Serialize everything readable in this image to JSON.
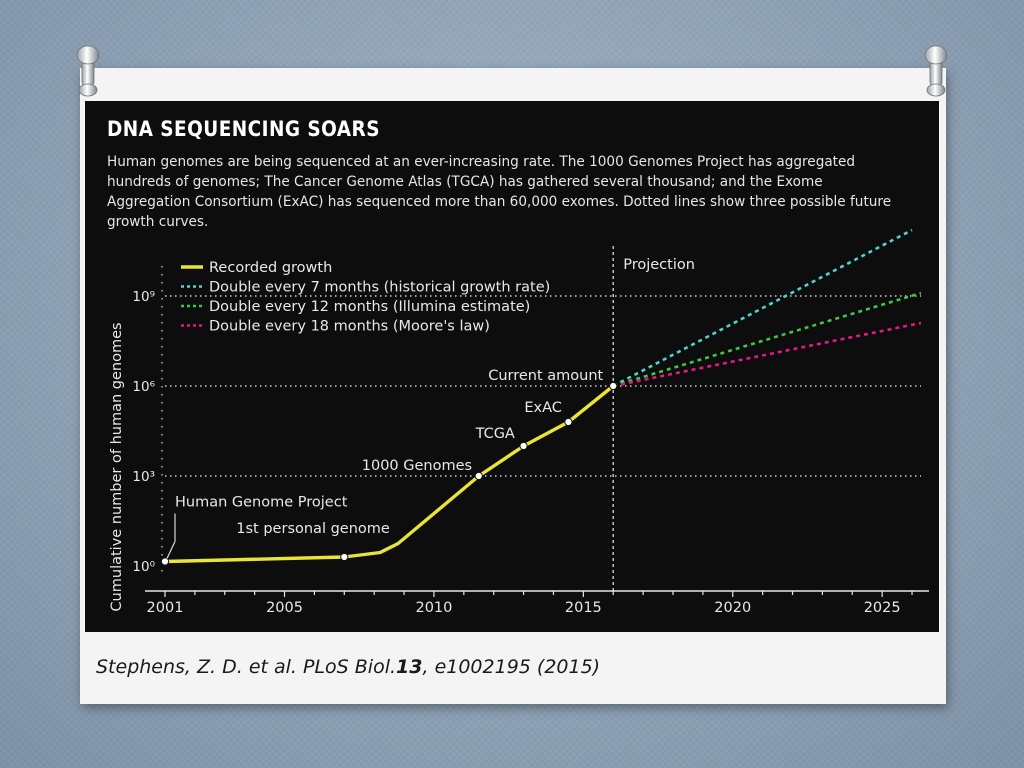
{
  "chart_data": {
    "type": "line",
    "title": "DNA SEQUENCING SOARS",
    "subtitle": "Human genomes are being sequenced at an ever-increasing rate. The 1000 Genomes Project has aggregated hundreds of genomes; The Cancer Genome Atlas (TGCA) has gathered several thousand; and the Exome Aggregation Consortium (ExAC) has sequenced more than 60,000 exomes. Dotted lines show three possible future growth curves.",
    "xlabel": "",
    "ylabel": "Cumulative number of human genomes",
    "x_ticks": [
      "2001",
      "2005",
      "2010",
      "2015",
      "2020",
      "2025"
    ],
    "y_ticks": [
      "10⁰",
      "10³",
      "10⁶",
      "10⁹"
    ],
    "xlim": [
      2001,
      2026.3
    ],
    "ylim_log10": [
      -0.3,
      10.6
    ],
    "y_scale": "log",
    "projection_label": "Projection",
    "projection_start": 2016,
    "series": [
      {
        "name": "Recorded growth",
        "style": "solid",
        "color": "#e8e43a",
        "x": [
          2001,
          2007,
          2008.2,
          2008.8,
          2011.5,
          2013,
          2014.5,
          2016
        ],
        "y_log10": [
          0.15,
          0.3,
          0.45,
          0.75,
          3.0,
          4.0,
          4.8,
          6.0
        ]
      },
      {
        "name": "Double every 7 months (historical growth rate)",
        "style": "dotted",
        "color": "#4fd3cf",
        "x": [
          2016,
          2026
        ],
        "y_log10": [
          6.0,
          11.2
        ]
      },
      {
        "name": "Double every 12 months (Illumina estimate)",
        "style": "dotted",
        "color": "#3cc64c",
        "x": [
          2016,
          2026.3
        ],
        "y_log10": [
          6.0,
          9.1
        ]
      },
      {
        "name": "Double every 18 months (Moore's law)",
        "style": "dotted",
        "color": "#e5197d",
        "x": [
          2016,
          2026.3
        ],
        "y_log10": [
          6.0,
          8.1
        ]
      }
    ],
    "annotations": [
      {
        "label": "Human Genome Project",
        "x": 2001,
        "y_log10": 0.15
      },
      {
        "label": "1st personal genome",
        "x": 2007,
        "y_log10": 0.3
      },
      {
        "label": "1000 Genomes",
        "x": 2011.5,
        "y_log10": 3.0
      },
      {
        "label": "TCGA",
        "x": 2013,
        "y_log10": 4.0
      },
      {
        "label": "ExAC",
        "x": 2014.5,
        "y_log10": 4.8
      },
      {
        "label": "Current amount",
        "x": 2016,
        "y_log10": 6.0
      }
    ],
    "grid": "dotted horizontal at labeled y ticks",
    "legend_position": "top-left"
  },
  "citation": {
    "authors": "Stephens, Z. D. et al. PLoS Biol.",
    "volume": "13",
    "rest": ", e1002195 (2015)"
  }
}
